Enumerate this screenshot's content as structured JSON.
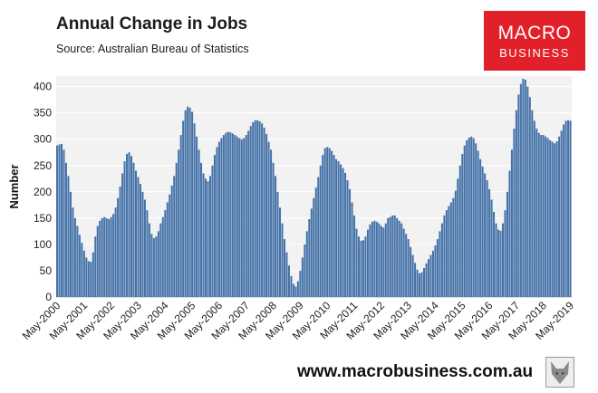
{
  "header": {
    "title": "Annual Change in Jobs",
    "subtitle": "Source: Australian Bureau of Statistics"
  },
  "logo": {
    "top": "MACRO",
    "bottom": "BUSINESS"
  },
  "footer": {
    "url": "www.macrobusiness.com.au",
    "icon": "wolf-logo-icon"
  },
  "colors": {
    "bar": "#4472a8",
    "plot_bg": "#f2f2f2",
    "grid": "#ffffff",
    "logo_bg": "#e2202a"
  },
  "chart_data": {
    "type": "bar",
    "title": "Annual Change in Jobs",
    "xlabel": "",
    "ylabel": "Number",
    "ylim": [
      0,
      420
    ],
    "yticks": [
      0,
      50,
      100,
      150,
      200,
      250,
      300,
      350,
      400
    ],
    "xtick_labels": [
      "May-2000",
      "May-2001",
      "May-2002",
      "May-2003",
      "May-2004",
      "May-2005",
      "May-2006",
      "May-2007",
      "May-2008",
      "May-2009",
      "May-2010",
      "May-2011",
      "May-2012",
      "May-2013",
      "May-2014",
      "May-2015",
      "May-2016",
      "May-2017",
      "May-2018",
      "May-2019"
    ],
    "grid": true,
    "frequency": "monthly",
    "x_start": "May-2000",
    "x_end": "May-2019",
    "values": [
      288,
      290,
      291,
      280,
      255,
      230,
      200,
      170,
      150,
      135,
      118,
      103,
      88,
      75,
      68,
      67,
      85,
      115,
      135,
      145,
      150,
      152,
      150,
      148,
      152,
      158,
      170,
      188,
      210,
      235,
      258,
      272,
      275,
      268,
      255,
      240,
      228,
      215,
      200,
      185,
      165,
      140,
      120,
      112,
      115,
      125,
      140,
      152,
      165,
      180,
      195,
      212,
      230,
      255,
      280,
      308,
      335,
      355,
      362,
      360,
      352,
      330,
      305,
      280,
      255,
      235,
      225,
      220,
      230,
      250,
      270,
      285,
      295,
      302,
      308,
      312,
      314,
      313,
      311,
      308,
      305,
      302,
      300,
      302,
      308,
      316,
      325,
      332,
      336,
      336,
      334,
      330,
      322,
      310,
      295,
      280,
      255,
      230,
      200,
      170,
      140,
      110,
      85,
      60,
      40,
      25,
      20,
      30,
      50,
      75,
      100,
      125,
      148,
      168,
      188,
      208,
      228,
      250,
      270,
      283,
      285,
      283,
      278,
      270,
      262,
      258,
      252,
      245,
      236,
      222,
      205,
      180,
      155,
      130,
      115,
      107,
      108,
      115,
      128,
      138,
      143,
      145,
      143,
      140,
      135,
      132,
      140,
      150,
      152,
      155,
      155,
      150,
      145,
      140,
      130,
      120,
      110,
      95,
      80,
      65,
      52,
      45,
      47,
      55,
      64,
      72,
      80,
      88,
      98,
      110,
      125,
      140,
      155,
      165,
      173,
      180,
      188,
      202,
      225,
      250,
      272,
      288,
      298,
      303,
      305,
      302,
      292,
      278,
      262,
      248,
      235,
      222,
      205,
      185,
      162,
      140,
      128,
      126,
      140,
      165,
      200,
      240,
      280,
      320,
      355,
      385,
      405,
      415,
      413,
      400,
      380,
      355,
      335,
      320,
      312,
      308,
      308,
      305,
      302,
      298,
      295,
      292,
      296,
      305,
      316,
      328,
      335,
      336,
      335
    ]
  }
}
